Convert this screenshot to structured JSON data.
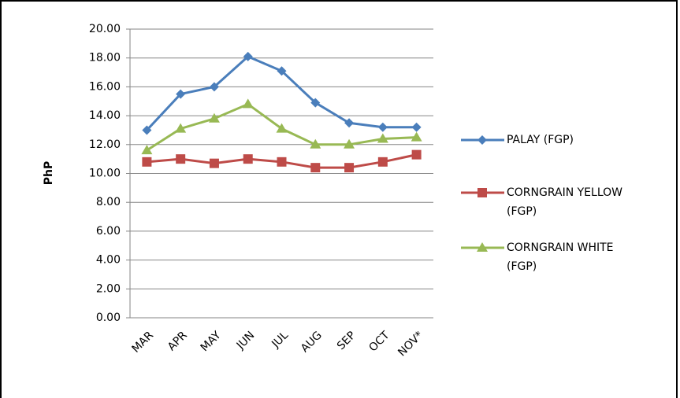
{
  "chart_data": {
    "type": "line",
    "y_label": "PhP",
    "categories": [
      "MAR",
      "APR",
      "MAY",
      "JUN",
      "JUL",
      "AUG",
      "SEP",
      "OCT",
      "NOV*"
    ],
    "series": [
      {
        "name": "PALAY (FGP)",
        "color": "#4a7ebb",
        "marker": "diamond",
        "values": [
          13.0,
          15.5,
          16.0,
          18.1,
          17.1,
          14.9,
          13.5,
          13.2,
          13.2
        ]
      },
      {
        "name": "CORNGRAIN YELLOW (FGP)",
        "color": "#be4b48",
        "marker": "square",
        "values": [
          10.8,
          11.0,
          10.7,
          11.0,
          10.8,
          10.4,
          10.4,
          10.8,
          11.3
        ]
      },
      {
        "name": "CORNGRAIN WHITE (FGP)",
        "color": "#98b954",
        "marker": "triangle",
        "values": [
          11.6,
          13.1,
          13.8,
          14.8,
          13.1,
          12.0,
          12.0,
          12.4,
          12.5
        ]
      }
    ],
    "ylim": [
      0,
      20
    ],
    "yticks": [
      {
        "value": 0,
        "label": "0.00"
      },
      {
        "value": 2,
        "label": "2.00"
      },
      {
        "value": 4,
        "label": "4.00"
      },
      {
        "value": 6,
        "label": "6.00"
      },
      {
        "value": 8,
        "label": "8.00"
      },
      {
        "value": 10,
        "label": "10.00"
      },
      {
        "value": 12,
        "label": "12.00"
      },
      {
        "value": 14,
        "label": "14.00"
      },
      {
        "value": 16,
        "label": "16.00"
      },
      {
        "value": 18,
        "label": "18.00"
      },
      {
        "value": 20,
        "label": "20.00"
      }
    ],
    "grid": true
  }
}
